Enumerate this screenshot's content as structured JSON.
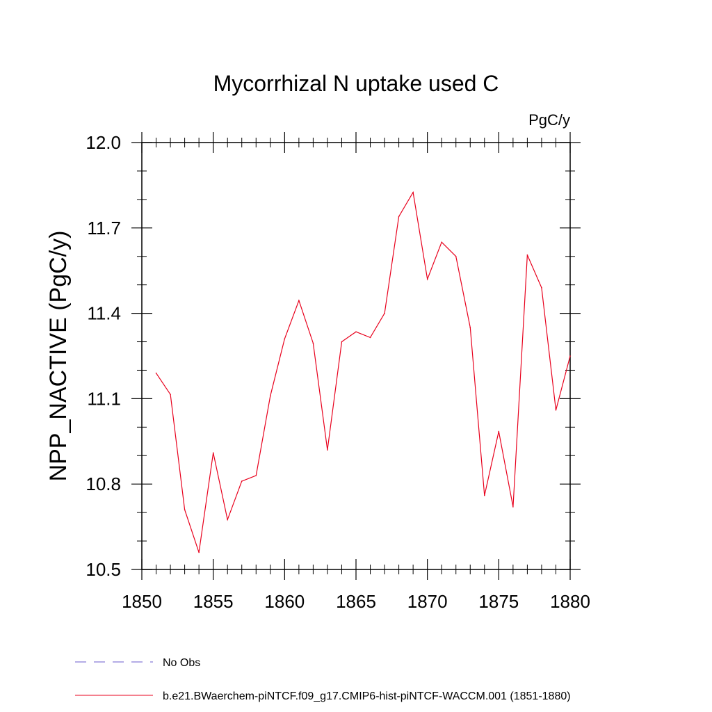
{
  "chart_data": {
    "type": "line",
    "title": "Mycorrhizal N uptake used C",
    "units": "PgC/y",
    "ylabel": "NPP_NACTIVE  (PgC/y)",
    "xlabel": "",
    "xlim": [
      1850,
      1880
    ],
    "ylim": [
      10.5,
      12.0
    ],
    "x_ticks": [
      1850,
      1855,
      1860,
      1865,
      1870,
      1875,
      1880
    ],
    "x_tick_labels": [
      "1850",
      "1855",
      "1860",
      "1865",
      "1870",
      "1875",
      "1880"
    ],
    "x_minor_step": 1,
    "y_ticks": [
      10.5,
      10.8,
      11.1,
      11.4,
      11.7,
      12.0
    ],
    "y_tick_labels": [
      "10.5",
      "10.8",
      "11.1",
      "11.4",
      "11.7",
      "12.0"
    ],
    "y_minor_step": 0.1,
    "grid": false,
    "legend_position": "bottom-left",
    "series": [
      {
        "name": "b.e21.BWaerchem-piNTCF.f09_g17.CMIP6-hist-piNTCF-WACCM.001 (1851-1880)",
        "color": "#e8001c",
        "style": "solid",
        "x": [
          1851,
          1852,
          1853,
          1854,
          1855,
          1856,
          1857,
          1858,
          1859,
          1860,
          1861,
          1862,
          1863,
          1864,
          1865,
          1866,
          1867,
          1868,
          1869,
          1870,
          1871,
          1872,
          1873,
          1874,
          1875,
          1876,
          1877,
          1878,
          1879,
          1880
        ],
        "y": [
          11.19,
          11.115,
          10.71,
          10.56,
          10.91,
          10.675,
          10.81,
          10.83,
          11.11,
          11.31,
          11.445,
          11.295,
          10.92,
          11.3,
          11.335,
          11.315,
          11.4,
          11.74,
          11.825,
          11.52,
          11.65,
          11.6,
          11.35,
          10.76,
          10.985,
          10.72,
          11.605,
          11.49,
          11.06,
          11.25
        ]
      }
    ],
    "legend": [
      {
        "label": "No Obs",
        "color": "#6a5acd",
        "style": "dashed"
      },
      {
        "label": "b.e21.BWaerchem-piNTCF.f09_g17.CMIP6-hist-piNTCF-WACCM.001 (1851-1880)",
        "color": "#e8001c",
        "style": "solid"
      }
    ]
  }
}
